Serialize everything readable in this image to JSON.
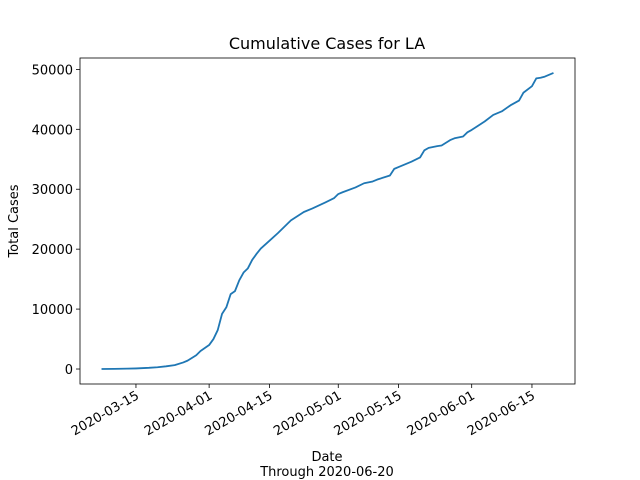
{
  "chart_data": {
    "type": "line",
    "title": "Cumulative Cases for LA",
    "xlabel": "Date",
    "note": "Through 2020-06-20",
    "ylabel": "Total Cases",
    "x": [
      "2020-03-07",
      "2020-03-10",
      "2020-03-13",
      "2020-03-15",
      "2020-03-18",
      "2020-03-20",
      "2020-03-22",
      "2020-03-24",
      "2020-03-26",
      "2020-03-27",
      "2020-03-29",
      "2020-03-30",
      "2020-04-01",
      "2020-04-02",
      "2020-04-03",
      "2020-04-04",
      "2020-04-05",
      "2020-04-06",
      "2020-04-07",
      "2020-04-08",
      "2020-04-09",
      "2020-04-10",
      "2020-04-11",
      "2020-04-12",
      "2020-04-13",
      "2020-04-15",
      "2020-04-17",
      "2020-04-20",
      "2020-04-23",
      "2020-04-25",
      "2020-04-28",
      "2020-04-30",
      "2020-05-01",
      "2020-05-02",
      "2020-05-05",
      "2020-05-07",
      "2020-05-09",
      "2020-05-10",
      "2020-05-13",
      "2020-05-14",
      "2020-05-15",
      "2020-05-18",
      "2020-05-20",
      "2020-05-21",
      "2020-05-22",
      "2020-05-24",
      "2020-05-25",
      "2020-05-27",
      "2020-05-28",
      "2020-05-30",
      "2020-05-31",
      "2020-06-01",
      "2020-06-04",
      "2020-06-06",
      "2020-06-08",
      "2020-06-10",
      "2020-06-12",
      "2020-06-13",
      "2020-06-15",
      "2020-06-16",
      "2020-06-17",
      "2020-06-18",
      "2020-06-20"
    ],
    "series": [
      {
        "name": "Total Cases",
        "color": "#1f77b4",
        "values": [
          0,
          20,
          60,
          100,
          200,
          300,
          450,
          650,
          1100,
          1400,
          2300,
          3000,
          4000,
          5000,
          6500,
          9200,
          10300,
          12500,
          13000,
          14800,
          16100,
          16800,
          18200,
          19200,
          20100,
          21400,
          22700,
          24800,
          26200,
          26800,
          27800,
          28500,
          29200,
          29500,
          30300,
          31000,
          31300,
          31600,
          32300,
          33400,
          33700,
          34600,
          35300,
          36500,
          36900,
          37200,
          37300,
          38200,
          38500,
          38800,
          39500,
          39900,
          41300,
          42400,
          43000,
          44000,
          44800,
          46100,
          47200,
          48500,
          48600,
          48800,
          49400
        ]
      }
    ],
    "xlim": [
      "2020-03-02",
      "2020-06-25"
    ],
    "xticks": [
      "2020-03-15",
      "2020-04-01",
      "2020-04-15",
      "2020-05-01",
      "2020-05-15",
      "2020-06-01",
      "2020-06-15"
    ],
    "ylim": [
      -2500,
      51900
    ],
    "yticks": [
      0,
      10000,
      20000,
      30000,
      40000,
      50000
    ]
  }
}
